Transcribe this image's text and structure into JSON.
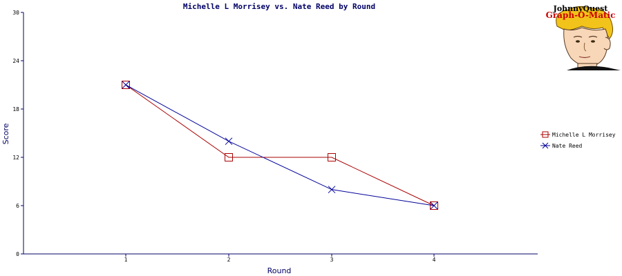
{
  "chart_data": {
    "type": "line",
    "title": "Michelle L Morrisey vs. Nate Reed by Round",
    "xlabel": "Round",
    "ylabel": "Score",
    "categories": [
      "1",
      "2",
      "3",
      "4"
    ],
    "ylim": [
      0,
      30
    ],
    "yticks": [
      0,
      6,
      12,
      18,
      24,
      30
    ],
    "grid": false,
    "legend_position": "right",
    "series": [
      {
        "name": "Michelle L Morrisey",
        "values": [
          21,
          12,
          12,
          6
        ],
        "color": "#aa0000",
        "marker": "square"
      },
      {
        "name": "Nate Reed",
        "values": [
          21,
          14,
          8,
          6
        ],
        "color": "#000099",
        "marker": "x"
      }
    ]
  },
  "logo": {
    "line1": "JohnnyQuest",
    "line2": "Graph-O-Matic",
    "icon": "cartoon-boy-face-icon"
  },
  "colors": {
    "axis": "#000066",
    "title": "#000066"
  }
}
